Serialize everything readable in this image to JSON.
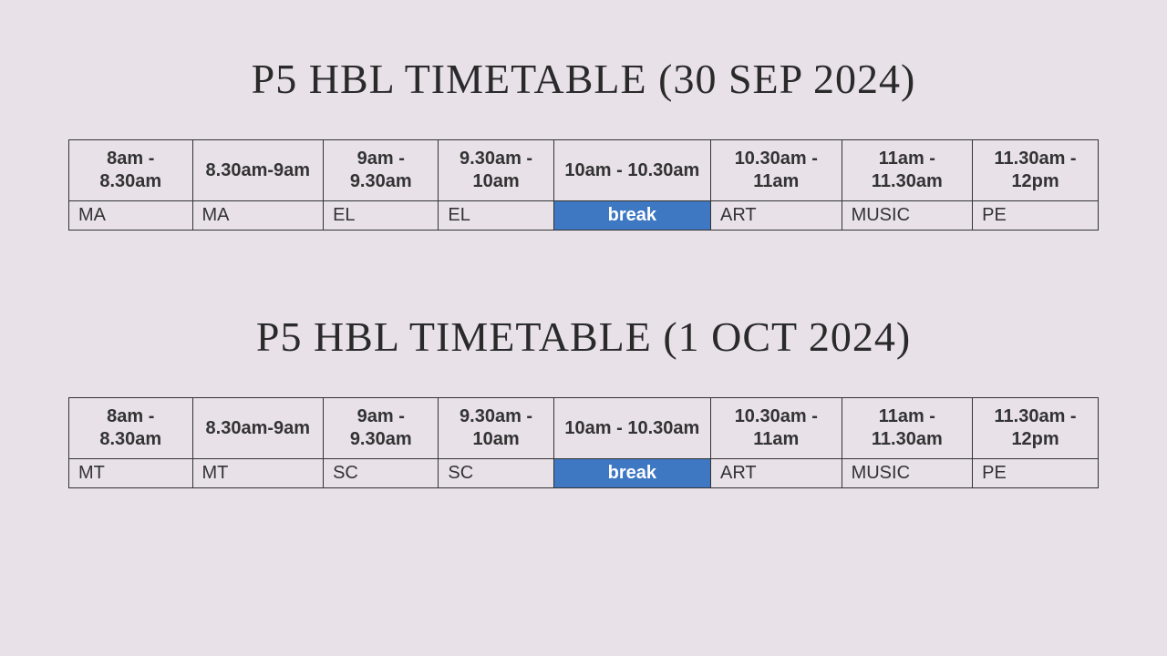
{
  "background_color": "#e8e1e8",
  "border_color": "#333333",
  "text_color": "#333333",
  "title_color": "#2a2a2a",
  "title_font_family": "Comic Sans MS, Segoe Script, cursive",
  "title_fontsize": 46,
  "header_fontsize": 20,
  "cell_fontsize": 20,
  "break_cell_bg": "#3e78c3",
  "break_cell_text_color": "#ffffff",
  "column_widths_pct": [
    11.8,
    12.5,
    11,
    11,
    15,
    12.5,
    12.5,
    12
  ],
  "timetables": [
    {
      "title": "P5 HBL TIMETABLE (30 SEP 2024)",
      "headers": [
        "8am - 8.30am",
        "8.30am-9am",
        "9am - 9.30am",
        "9.30am - 10am",
        "10am - 10.30am",
        "10.30am - 11am",
        "11am - 11.30am",
        "11.30am - 12pm"
      ],
      "row": [
        {
          "label": "MA",
          "is_break": false
        },
        {
          "label": "MA",
          "is_break": false
        },
        {
          "label": "EL",
          "is_break": false
        },
        {
          "label": "EL",
          "is_break": false
        },
        {
          "label": "break",
          "is_break": true
        },
        {
          "label": "ART",
          "is_break": false
        },
        {
          "label": "MUSIC",
          "is_break": false
        },
        {
          "label": "PE",
          "is_break": false
        }
      ]
    },
    {
      "title": "P5 HBL TIMETABLE (1 OCT 2024)",
      "headers": [
        "8am - 8.30am",
        "8.30am-9am",
        "9am - 9.30am",
        "9.30am - 10am",
        "10am - 10.30am",
        "10.30am - 11am",
        "11am - 11.30am",
        "11.30am - 12pm"
      ],
      "row": [
        {
          "label": "MT",
          "is_break": false
        },
        {
          "label": "MT",
          "is_break": false
        },
        {
          "label": "SC",
          "is_break": false
        },
        {
          "label": "SC",
          "is_break": false
        },
        {
          "label": "break",
          "is_break": true
        },
        {
          "label": "ART",
          "is_break": false
        },
        {
          "label": "MUSIC",
          "is_break": false
        },
        {
          "label": "PE",
          "is_break": false
        }
      ]
    }
  ]
}
